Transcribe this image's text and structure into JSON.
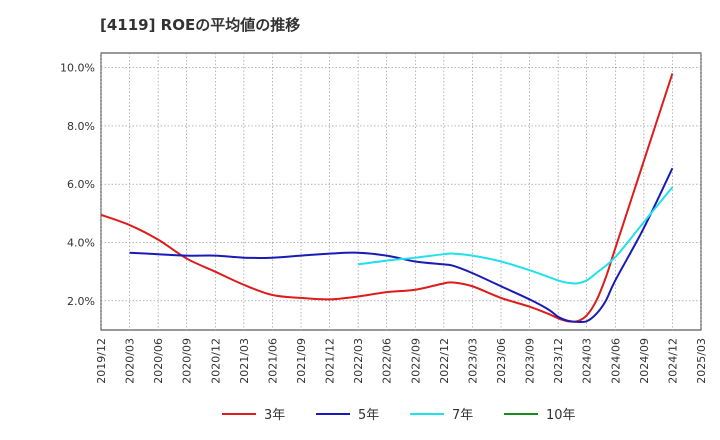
{
  "chart_data": {
    "type": "line",
    "title": "[4119]  ROEの平均値の推移",
    "xlabel": "",
    "ylabel": "",
    "ylim": [
      1.0,
      10.5
    ],
    "yticks": [
      2.0,
      4.0,
      6.0,
      8.0,
      10.0
    ],
    "ytick_labels": [
      "2.0%",
      "4.0%",
      "6.0%",
      "8.0%",
      "10.0%"
    ],
    "xlim": [
      "2019-12",
      "2025-03"
    ],
    "xtick_labels": [
      "2019/12",
      "2020/03",
      "2020/06",
      "2020/09",
      "2020/12",
      "2021/03",
      "2021/06",
      "2021/09",
      "2021/12",
      "2022/03",
      "2022/06",
      "2022/09",
      "2022/12",
      "2023/03",
      "2023/06",
      "2023/09",
      "2023/12",
      "2024/03",
      "2024/06",
      "2024/09",
      "2024/12",
      "2025/03"
    ],
    "grid": true,
    "legend_position": "bottom",
    "series": [
      {
        "name": "3年",
        "color": "#dd1c1c",
        "points": [
          [
            "2019-12",
            4.95
          ],
          [
            "2020-03",
            4.6
          ],
          [
            "2020-06",
            4.1
          ],
          [
            "2020-09",
            3.45
          ],
          [
            "2020-12",
            3.0
          ],
          [
            "2021-03",
            2.55
          ],
          [
            "2021-06",
            2.2
          ],
          [
            "2021-09",
            2.1
          ],
          [
            "2021-12",
            2.05
          ],
          [
            "2022-03",
            2.15
          ],
          [
            "2022-06",
            2.3
          ],
          [
            "2022-09",
            2.38
          ],
          [
            "2022-12",
            2.6
          ],
          [
            "2023-01",
            2.63
          ],
          [
            "2023-03",
            2.5
          ],
          [
            "2023-06",
            2.1
          ],
          [
            "2023-09",
            1.8
          ],
          [
            "2023-11",
            1.55
          ],
          [
            "2023-12",
            1.4
          ],
          [
            "2024-01",
            1.3
          ],
          [
            "2024-02",
            1.3
          ],
          [
            "2024-03",
            1.5
          ],
          [
            "2024-04",
            2.0
          ],
          [
            "2024-05",
            2.8
          ],
          [
            "2024-06",
            3.8
          ],
          [
            "2024-09",
            6.8
          ],
          [
            "2024-12",
            9.8
          ]
        ]
      },
      {
        "name": "5年",
        "color": "#1a1ab8",
        "points": [
          [
            "2020-03",
            3.65
          ],
          [
            "2020-06",
            3.6
          ],
          [
            "2020-09",
            3.55
          ],
          [
            "2020-12",
            3.55
          ],
          [
            "2021-03",
            3.48
          ],
          [
            "2021-06",
            3.48
          ],
          [
            "2021-09",
            3.55
          ],
          [
            "2021-12",
            3.62
          ],
          [
            "2022-03",
            3.65
          ],
          [
            "2022-06",
            3.55
          ],
          [
            "2022-09",
            3.35
          ],
          [
            "2022-12",
            3.25
          ],
          [
            "2023-01",
            3.2
          ],
          [
            "2023-03",
            2.95
          ],
          [
            "2023-06",
            2.5
          ],
          [
            "2023-09",
            2.05
          ],
          [
            "2023-11",
            1.7
          ],
          [
            "2023-12",
            1.45
          ],
          [
            "2024-01",
            1.32
          ],
          [
            "2024-02",
            1.28
          ],
          [
            "2024-03",
            1.3
          ],
          [
            "2024-04",
            1.55
          ],
          [
            "2024-05",
            2.0
          ],
          [
            "2024-06",
            2.7
          ],
          [
            "2024-09",
            4.5
          ],
          [
            "2024-12",
            6.55
          ]
        ]
      },
      {
        "name": "7年",
        "color": "#22e0ee",
        "points": [
          [
            "2022-03",
            3.25
          ],
          [
            "2022-06",
            3.38
          ],
          [
            "2022-09",
            3.48
          ],
          [
            "2022-12",
            3.6
          ],
          [
            "2023-01",
            3.62
          ],
          [
            "2023-03",
            3.55
          ],
          [
            "2023-06",
            3.35
          ],
          [
            "2023-09",
            3.05
          ],
          [
            "2023-12",
            2.7
          ],
          [
            "2024-01",
            2.62
          ],
          [
            "2024-02",
            2.6
          ],
          [
            "2024-03",
            2.7
          ],
          [
            "2024-04",
            2.95
          ],
          [
            "2024-06",
            3.5
          ],
          [
            "2024-09",
            4.7
          ],
          [
            "2024-12",
            5.9
          ]
        ]
      },
      {
        "name": "10年",
        "color": "#1a8a1a",
        "points": []
      }
    ]
  }
}
